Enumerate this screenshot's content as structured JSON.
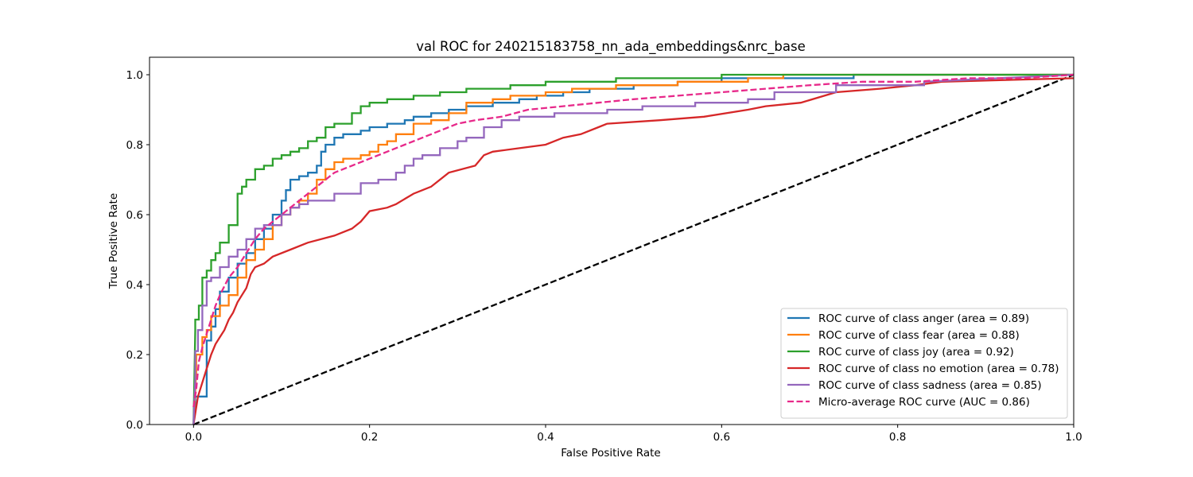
{
  "chart_data": {
    "type": "line",
    "title": "val ROC for 240215183758_nn_ada_embeddings&nrc_base",
    "xlabel": "False Positive Rate",
    "ylabel": "True Positive Rate",
    "xlim": [
      -0.05,
      1.0
    ],
    "ylim": [
      0.0,
      1.05
    ],
    "xticks": [
      "0.0",
      "0.2",
      "0.4",
      "0.6",
      "0.8",
      "1.0"
    ],
    "yticks": [
      "0.0",
      "0.2",
      "0.4",
      "0.6",
      "0.8",
      "1.0"
    ],
    "grid": false,
    "legend_position": "lower-right",
    "series": [
      {
        "name": "ROC curve of class anger (area = 0.89)",
        "color": "#1f77b4",
        "dash": "solid",
        "x": [
          0,
          0.002,
          0.002,
          0.006,
          0.006,
          0.015,
          0.015,
          0.02,
          0.02,
          0.025,
          0.025,
          0.03,
          0.03,
          0.04,
          0.04,
          0.05,
          0.05,
          0.06,
          0.06,
          0.07,
          0.07,
          0.08,
          0.08,
          0.09,
          0.09,
          0.1,
          0.1,
          0.105,
          0.105,
          0.11,
          0.11,
          0.12,
          0.12,
          0.13,
          0.13,
          0.14,
          0.14,
          0.145,
          0.145,
          0.15,
          0.15,
          0.16,
          0.16,
          0.17,
          0.17,
          0.19,
          0.19,
          0.2,
          0.2,
          0.22,
          0.22,
          0.24,
          0.24,
          0.25,
          0.25,
          0.27,
          0.27,
          0.29,
          0.29,
          0.31,
          0.31,
          0.34,
          0.34,
          0.37,
          0.37,
          0.39,
          0.39,
          0.42,
          0.42,
          0.45,
          0.45,
          0.5,
          0.5,
          0.55,
          0.55,
          0.6,
          0.6,
          0.75,
          0.75,
          1.0
        ],
        "y": [
          0,
          0.05,
          0.08,
          0.08,
          0.08,
          0.08,
          0.24,
          0.24,
          0.28,
          0.28,
          0.33,
          0.33,
          0.38,
          0.38,
          0.42,
          0.42,
          0.46,
          0.46,
          0.49,
          0.49,
          0.53,
          0.53,
          0.56,
          0.56,
          0.6,
          0.6,
          0.64,
          0.64,
          0.67,
          0.67,
          0.7,
          0.7,
          0.71,
          0.71,
          0.72,
          0.72,
          0.74,
          0.74,
          0.78,
          0.78,
          0.8,
          0.8,
          0.82,
          0.82,
          0.83,
          0.83,
          0.84,
          0.84,
          0.85,
          0.85,
          0.86,
          0.86,
          0.87,
          0.87,
          0.88,
          0.88,
          0.89,
          0.89,
          0.9,
          0.9,
          0.91,
          0.91,
          0.92,
          0.92,
          0.93,
          0.93,
          0.94,
          0.94,
          0.95,
          0.95,
          0.96,
          0.96,
          0.97,
          0.97,
          0.98,
          0.98,
          0.99,
          0.99,
          1.0,
          1.0
        ]
      },
      {
        "name": "ROC curve of class fear (area = 0.88)",
        "color": "#ff7f0e",
        "dash": "solid",
        "x": [
          0,
          0.003,
          0.003,
          0.01,
          0.01,
          0.015,
          0.015,
          0.02,
          0.02,
          0.03,
          0.03,
          0.04,
          0.04,
          0.05,
          0.05,
          0.06,
          0.06,
          0.07,
          0.07,
          0.08,
          0.08,
          0.09,
          0.09,
          0.1,
          0.1,
          0.11,
          0.11,
          0.12,
          0.12,
          0.13,
          0.13,
          0.14,
          0.14,
          0.15,
          0.15,
          0.16,
          0.16,
          0.17,
          0.17,
          0.19,
          0.19,
          0.2,
          0.2,
          0.21,
          0.21,
          0.22,
          0.22,
          0.23,
          0.23,
          0.25,
          0.25,
          0.27,
          0.27,
          0.29,
          0.29,
          0.31,
          0.31,
          0.34,
          0.34,
          0.36,
          0.36,
          0.4,
          0.4,
          0.43,
          0.43,
          0.48,
          0.48,
          0.55,
          0.55,
          0.63,
          0.63,
          0.67,
          0.67,
          0.77,
          0.77,
          1.0
        ],
        "y": [
          0,
          0.15,
          0.2,
          0.2,
          0.25,
          0.25,
          0.27,
          0.27,
          0.31,
          0.31,
          0.34,
          0.34,
          0.37,
          0.37,
          0.42,
          0.42,
          0.47,
          0.47,
          0.5,
          0.5,
          0.53,
          0.53,
          0.57,
          0.57,
          0.6,
          0.6,
          0.62,
          0.62,
          0.64,
          0.64,
          0.66,
          0.66,
          0.7,
          0.7,
          0.73,
          0.73,
          0.75,
          0.75,
          0.76,
          0.76,
          0.77,
          0.77,
          0.78,
          0.78,
          0.8,
          0.8,
          0.81,
          0.81,
          0.83,
          0.83,
          0.86,
          0.86,
          0.87,
          0.87,
          0.89,
          0.89,
          0.92,
          0.92,
          0.93,
          0.93,
          0.94,
          0.94,
          0.95,
          0.95,
          0.96,
          0.96,
          0.97,
          0.97,
          0.98,
          0.98,
          0.99,
          0.99,
          1.0,
          1.0,
          1.0,
          1.0
        ]
      },
      {
        "name": "ROC curve of class joy (area = 0.92)",
        "color": "#2ca02c",
        "dash": "solid",
        "x": [
          0,
          0.002,
          0.002,
          0.006,
          0.006,
          0.01,
          0.01,
          0.015,
          0.015,
          0.02,
          0.02,
          0.025,
          0.025,
          0.03,
          0.03,
          0.04,
          0.04,
          0.05,
          0.05,
          0.055,
          0.055,
          0.06,
          0.06,
          0.07,
          0.07,
          0.08,
          0.08,
          0.09,
          0.09,
          0.1,
          0.1,
          0.11,
          0.11,
          0.12,
          0.12,
          0.13,
          0.13,
          0.14,
          0.14,
          0.15,
          0.15,
          0.16,
          0.16,
          0.18,
          0.18,
          0.19,
          0.19,
          0.2,
          0.2,
          0.22,
          0.22,
          0.25,
          0.25,
          0.28,
          0.28,
          0.31,
          0.31,
          0.36,
          0.36,
          0.4,
          0.4,
          0.48,
          0.48,
          0.52,
          0.52,
          0.6,
          0.6,
          1.0
        ],
        "y": [
          0,
          0.27,
          0.3,
          0.3,
          0.34,
          0.34,
          0.42,
          0.42,
          0.44,
          0.44,
          0.47,
          0.47,
          0.49,
          0.49,
          0.52,
          0.52,
          0.57,
          0.57,
          0.66,
          0.66,
          0.68,
          0.68,
          0.7,
          0.7,
          0.73,
          0.73,
          0.74,
          0.74,
          0.76,
          0.76,
          0.77,
          0.77,
          0.78,
          0.78,
          0.79,
          0.79,
          0.81,
          0.81,
          0.82,
          0.82,
          0.85,
          0.85,
          0.86,
          0.86,
          0.89,
          0.89,
          0.91,
          0.91,
          0.92,
          0.92,
          0.93,
          0.93,
          0.94,
          0.94,
          0.95,
          0.95,
          0.96,
          0.96,
          0.97,
          0.97,
          0.98,
          0.98,
          0.99,
          0.99,
          0.99,
          0.99,
          1.0,
          1.0
        ]
      },
      {
        "name": "ROC curve of class no emotion (area = 0.78)",
        "color": "#d62728",
        "dash": "solid",
        "x": [
          0,
          0.005,
          0.005,
          0.01,
          0.01,
          0.015,
          0.015,
          0.02,
          0.02,
          0.025,
          0.025,
          0.03,
          0.03,
          0.035,
          0.035,
          0.04,
          0.04,
          0.045,
          0.045,
          0.05,
          0.05,
          0.055,
          0.055,
          0.06,
          0.06,
          0.065,
          0.065,
          0.07,
          0.07,
          0.08,
          0.08,
          0.09,
          0.09,
          0.11,
          0.11,
          0.13,
          0.13,
          0.16,
          0.16,
          0.18,
          0.18,
          0.19,
          0.19,
          0.2,
          0.2,
          0.22,
          0.22,
          0.23,
          0.23,
          0.25,
          0.25,
          0.26,
          0.26,
          0.27,
          0.27,
          0.29,
          0.29,
          0.32,
          0.32,
          0.33,
          0.33,
          0.34,
          0.34,
          0.4,
          0.4,
          0.42,
          0.42,
          0.44,
          0.44,
          0.46,
          0.46,
          0.47,
          0.47,
          0.53,
          0.53,
          0.58,
          0.58,
          0.63,
          0.63,
          0.65,
          0.65,
          0.69,
          0.69,
          0.73,
          0.73,
          0.78,
          0.78,
          0.82,
          0.82,
          0.85,
          0.85,
          1.0
        ],
        "y": [
          0,
          0.08,
          0.08,
          0.12,
          0.12,
          0.16,
          0.16,
          0.2,
          0.2,
          0.23,
          0.23,
          0.25,
          0.25,
          0.27,
          0.27,
          0.3,
          0.3,
          0.32,
          0.32,
          0.35,
          0.35,
          0.37,
          0.37,
          0.39,
          0.39,
          0.43,
          0.43,
          0.45,
          0.45,
          0.46,
          0.46,
          0.48,
          0.48,
          0.5,
          0.5,
          0.52,
          0.52,
          0.54,
          0.54,
          0.56,
          0.56,
          0.58,
          0.58,
          0.61,
          0.61,
          0.62,
          0.62,
          0.63,
          0.63,
          0.66,
          0.66,
          0.67,
          0.67,
          0.68,
          0.68,
          0.72,
          0.72,
          0.74,
          0.74,
          0.77,
          0.77,
          0.78,
          0.78,
          0.8,
          0.8,
          0.82,
          0.82,
          0.83,
          0.83,
          0.85,
          0.85,
          0.86,
          0.86,
          0.87,
          0.87,
          0.88,
          0.88,
          0.9,
          0.9,
          0.91,
          0.91,
          0.92,
          0.92,
          0.95,
          0.95,
          0.96,
          0.96,
          0.97,
          0.97,
          0.98,
          0.98,
          0.99
        ]
      },
      {
        "name": "ROC curve of class sadness (area = 0.85)",
        "color": "#9467bd",
        "dash": "solid",
        "x": [
          0,
          0.002,
          0.002,
          0.005,
          0.005,
          0.01,
          0.01,
          0.015,
          0.015,
          0.02,
          0.02,
          0.03,
          0.03,
          0.04,
          0.04,
          0.05,
          0.05,
          0.06,
          0.06,
          0.07,
          0.07,
          0.08,
          0.08,
          0.1,
          0.1,
          0.11,
          0.11,
          0.12,
          0.12,
          0.13,
          0.13,
          0.16,
          0.16,
          0.19,
          0.19,
          0.21,
          0.21,
          0.23,
          0.23,
          0.24,
          0.24,
          0.25,
          0.25,
          0.26,
          0.26,
          0.28,
          0.28,
          0.3,
          0.3,
          0.31,
          0.31,
          0.33,
          0.33,
          0.35,
          0.35,
          0.37,
          0.37,
          0.41,
          0.41,
          0.47,
          0.47,
          0.51,
          0.51,
          0.57,
          0.57,
          0.63,
          0.63,
          0.66,
          0.66,
          0.73,
          0.73,
          0.83,
          0.83,
          1.0
        ],
        "y": [
          0,
          0.13,
          0.21,
          0.21,
          0.27,
          0.27,
          0.34,
          0.34,
          0.41,
          0.41,
          0.42,
          0.42,
          0.45,
          0.45,
          0.48,
          0.48,
          0.5,
          0.5,
          0.53,
          0.53,
          0.56,
          0.56,
          0.57,
          0.57,
          0.6,
          0.6,
          0.62,
          0.62,
          0.63,
          0.63,
          0.64,
          0.64,
          0.66,
          0.66,
          0.69,
          0.69,
          0.7,
          0.7,
          0.72,
          0.72,
          0.74,
          0.74,
          0.76,
          0.76,
          0.77,
          0.77,
          0.79,
          0.79,
          0.81,
          0.81,
          0.82,
          0.82,
          0.85,
          0.85,
          0.87,
          0.87,
          0.88,
          0.88,
          0.89,
          0.89,
          0.9,
          0.9,
          0.91,
          0.91,
          0.92,
          0.92,
          0.93,
          0.93,
          0.95,
          0.95,
          0.97,
          0.97,
          0.98,
          1.0
        ]
      },
      {
        "name": "Micro-average ROC curve (AUC = 0.86)",
        "color": "#e7298a",
        "dash": "dashed",
        "x": [
          0,
          0.003,
          0.006,
          0.01,
          0.015,
          0.02,
          0.025,
          0.03,
          0.04,
          0.05,
          0.06,
          0.07,
          0.08,
          0.09,
          0.1,
          0.11,
          0.12,
          0.13,
          0.14,
          0.15,
          0.16,
          0.18,
          0.2,
          0.22,
          0.24,
          0.26,
          0.28,
          0.3,
          0.32,
          0.35,
          0.38,
          0.42,
          0.46,
          0.5,
          0.55,
          0.6,
          0.65,
          0.7,
          0.76,
          0.82,
          0.88,
          0.94,
          1.0
        ],
        "y": [
          0.05,
          0.1,
          0.18,
          0.22,
          0.26,
          0.3,
          0.34,
          0.37,
          0.42,
          0.45,
          0.49,
          0.53,
          0.56,
          0.58,
          0.6,
          0.62,
          0.64,
          0.66,
          0.68,
          0.7,
          0.72,
          0.74,
          0.76,
          0.78,
          0.8,
          0.82,
          0.84,
          0.86,
          0.87,
          0.88,
          0.9,
          0.91,
          0.92,
          0.93,
          0.94,
          0.95,
          0.96,
          0.97,
          0.98,
          0.98,
          0.99,
          0.99,
          1.0
        ]
      },
      {
        "name": "",
        "color": "#000000",
        "dash": "dashed",
        "x": [
          0,
          1.0
        ],
        "y": [
          0,
          1.0
        ]
      }
    ]
  }
}
